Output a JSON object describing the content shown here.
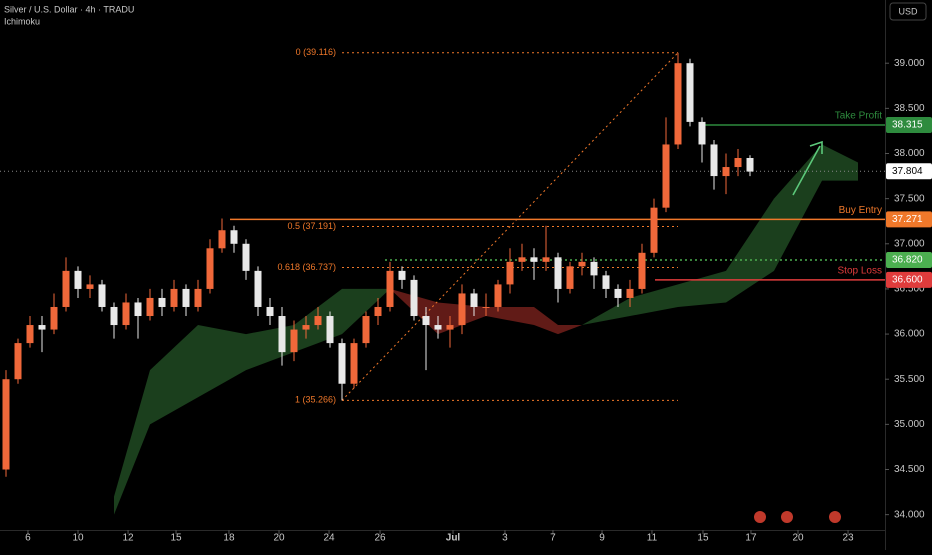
{
  "header": {
    "symbol": "Silver / U.S. Dollar · 4h · TRADU",
    "indicator": "Ichimoku",
    "currency": "USD"
  },
  "chart_data": {
    "type": "candlestick",
    "up_color": "#f0683a",
    "down_color": "#e8e8e8",
    "x": [
      0,
      1,
      2,
      3,
      4,
      5,
      6,
      7,
      8,
      9,
      10,
      11,
      12,
      13,
      14,
      15,
      16,
      17,
      18,
      19,
      20,
      21,
      22,
      23,
      24,
      25,
      26,
      27,
      28,
      29,
      30,
      31,
      32,
      33,
      34,
      35,
      36,
      37,
      38,
      39,
      40,
      41,
      42,
      43,
      44,
      45,
      46,
      47,
      48,
      49,
      50,
      51,
      52,
      53,
      54,
      55,
      56,
      57,
      58,
      59,
      60,
      61,
      62
    ],
    "open": [
      34.5,
      35.5,
      35.9,
      36.1,
      36.05,
      36.3,
      36.7,
      36.5,
      36.55,
      36.3,
      36.1,
      36.35,
      36.2,
      36.4,
      36.3,
      36.5,
      36.3,
      36.5,
      36.95,
      37.15,
      37.0,
      36.7,
      36.3,
      36.2,
      35.8,
      36.05,
      36.1,
      36.2,
      35.9,
      35.45,
      35.9,
      36.2,
      36.3,
      36.7,
      36.6,
      36.2,
      36.1,
      36.05,
      36.1,
      36.45,
      36.3,
      36.3,
      36.55,
      36.8,
      36.85,
      36.8,
      36.85,
      36.5,
      36.75,
      36.8,
      36.65,
      36.5,
      36.4,
      36.5,
      36.9,
      37.4,
      38.1,
      39.0,
      38.35,
      38.1,
      37.75,
      37.85,
      37.95
    ],
    "close": [
      35.5,
      35.9,
      36.1,
      36.05,
      36.3,
      36.7,
      36.5,
      36.55,
      36.3,
      36.1,
      36.35,
      36.2,
      36.4,
      36.3,
      36.5,
      36.3,
      36.5,
      36.95,
      37.15,
      37.0,
      36.7,
      36.3,
      36.2,
      35.8,
      36.05,
      36.1,
      36.2,
      35.9,
      35.45,
      35.9,
      36.2,
      36.3,
      36.7,
      36.6,
      36.2,
      36.1,
      36.05,
      36.1,
      36.45,
      36.3,
      36.3,
      36.55,
      36.8,
      36.85,
      36.8,
      36.85,
      36.5,
      36.75,
      36.8,
      36.65,
      36.5,
      36.4,
      36.5,
      36.9,
      37.4,
      38.1,
      39.0,
      38.35,
      38.1,
      37.75,
      37.85,
      37.95,
      37.8
    ],
    "high": [
      35.6,
      35.95,
      36.2,
      36.2,
      36.45,
      36.85,
      36.75,
      36.65,
      36.6,
      36.35,
      36.45,
      36.4,
      36.5,
      36.5,
      36.6,
      36.55,
      36.6,
      37.05,
      37.28,
      37.2,
      37.05,
      36.75,
      36.4,
      36.3,
      36.15,
      36.2,
      36.3,
      36.25,
      35.95,
      35.95,
      36.25,
      36.4,
      36.8,
      36.75,
      36.65,
      36.3,
      36.2,
      36.2,
      36.55,
      36.5,
      36.45,
      36.6,
      36.95,
      37.0,
      36.95,
      37.2,
      36.9,
      36.8,
      36.9,
      36.85,
      36.7,
      36.55,
      36.6,
      37.0,
      37.5,
      38.4,
      39.116,
      39.05,
      38.4,
      38.15,
      38.0,
      38.05,
      37.98
    ],
    "low": [
      34.42,
      35.45,
      35.85,
      35.8,
      36.0,
      36.25,
      36.4,
      36.4,
      36.25,
      35.95,
      36.05,
      35.95,
      36.15,
      36.2,
      36.25,
      36.2,
      36.25,
      36.45,
      36.9,
      36.9,
      36.6,
      36.2,
      36.1,
      35.65,
      35.7,
      35.95,
      36.05,
      35.85,
      35.266,
      35.4,
      35.85,
      36.1,
      36.25,
      36.5,
      36.15,
      35.6,
      35.95,
      35.85,
      36.0,
      36.2,
      36.2,
      36.25,
      36.45,
      36.7,
      36.6,
      36.7,
      36.35,
      36.45,
      36.65,
      36.5,
      36.4,
      36.3,
      36.3,
      36.45,
      36.85,
      37.35,
      38.05,
      38.3,
      37.9,
      37.6,
      37.55,
      37.75,
      37.75
    ],
    "cloud": {
      "up_color": "#1e4620",
      "down_color": "#6b1e1a",
      "x": [
        9,
        12,
        16,
        20,
        24,
        28,
        32,
        36,
        40,
        44,
        46,
        48,
        52,
        56,
        60,
        64,
        68,
        71
      ],
      "span_a": [
        34.2,
        35.6,
        36.1,
        36.0,
        36.1,
        36.5,
        36.5,
        36.0,
        36.2,
        36.1,
        36.0,
        36.1,
        36.4,
        36.55,
        36.7,
        37.5,
        38.1,
        37.9
      ],
      "span_b": [
        34.0,
        35.0,
        35.3,
        35.6,
        35.8,
        36.0,
        36.5,
        36.35,
        36.3,
        36.3,
        36.1,
        36.1,
        36.2,
        36.3,
        36.35,
        36.7,
        37.7,
        37.7
      ]
    },
    "fib": {
      "color": "#f0782a",
      "from": [
        28,
        56
      ],
      "levels": [
        {
          "value": 39.116,
          "label": "0 (39.116)"
        },
        {
          "value": 37.191,
          "label": "0.5 (37.191)"
        },
        {
          "value": 36.737,
          "label": "0.618 (36.737)"
        },
        {
          "value": 35.266,
          "label": "1 (35.266)"
        }
      ]
    },
    "levels": [
      {
        "name": "Take Profit",
        "value": 38.315,
        "label": "38.315",
        "color": "#2e8b3e"
      },
      {
        "name": "Buy Entry",
        "value": 37.271,
        "label": "37.271",
        "color": "#f0782a"
      },
      {
        "name": "Stop Loss",
        "value": 36.6,
        "label": "36.600",
        "color": "#e03c3c"
      }
    ],
    "support": {
      "value": 36.82,
      "label": "36.820",
      "color": "#4caf50"
    },
    "last_price": {
      "value": 37.804,
      "label": "37.804"
    },
    "xlim": [
      -0.5,
      73.25
    ],
    "ylim": [
      33.83,
      39.7
    ],
    "yticks": [
      {
        "value": 34,
        "label": "34.000"
      },
      {
        "value": 34.5,
        "label": "34.500"
      },
      {
        "value": 35,
        "label": "35.000"
      },
      {
        "value": 35.5,
        "label": "35.500"
      },
      {
        "value": 36,
        "label": "36.000"
      },
      {
        "value": 36.5,
        "label": "36.500"
      },
      {
        "value": 37,
        "label": "37.000"
      },
      {
        "value": 37.5,
        "label": "37.500"
      },
      {
        "value": 38,
        "label": "38.000"
      },
      {
        "value": 38.5,
        "label": "38.500"
      },
      {
        "value": 39,
        "label": "39.000"
      }
    ],
    "xticks": [
      {
        "value": 1.83,
        "label": "6"
      },
      {
        "value": 6,
        "label": "10"
      },
      {
        "value": 10.17,
        "label": "12"
      },
      {
        "value": 14.17,
        "label": "15"
      },
      {
        "value": 18.58,
        "label": "18"
      },
      {
        "value": 22.75,
        "label": "20"
      },
      {
        "value": 26.92,
        "label": "24"
      },
      {
        "value": 31.17,
        "label": "26"
      },
      {
        "value": 37.25,
        "label": "Jul"
      },
      {
        "value": 41.58,
        "label": "3"
      },
      {
        "value": 45.58,
        "label": "7"
      },
      {
        "value": 49.67,
        "label": "9"
      },
      {
        "value": 53.83,
        "label": "11"
      },
      {
        "value": 58.08,
        "label": "15"
      },
      {
        "value": 62.08,
        "label": "17"
      },
      {
        "value": 66,
        "label": "20"
      },
      {
        "value": 70.17,
        "label": "23"
      }
    ]
  }
}
